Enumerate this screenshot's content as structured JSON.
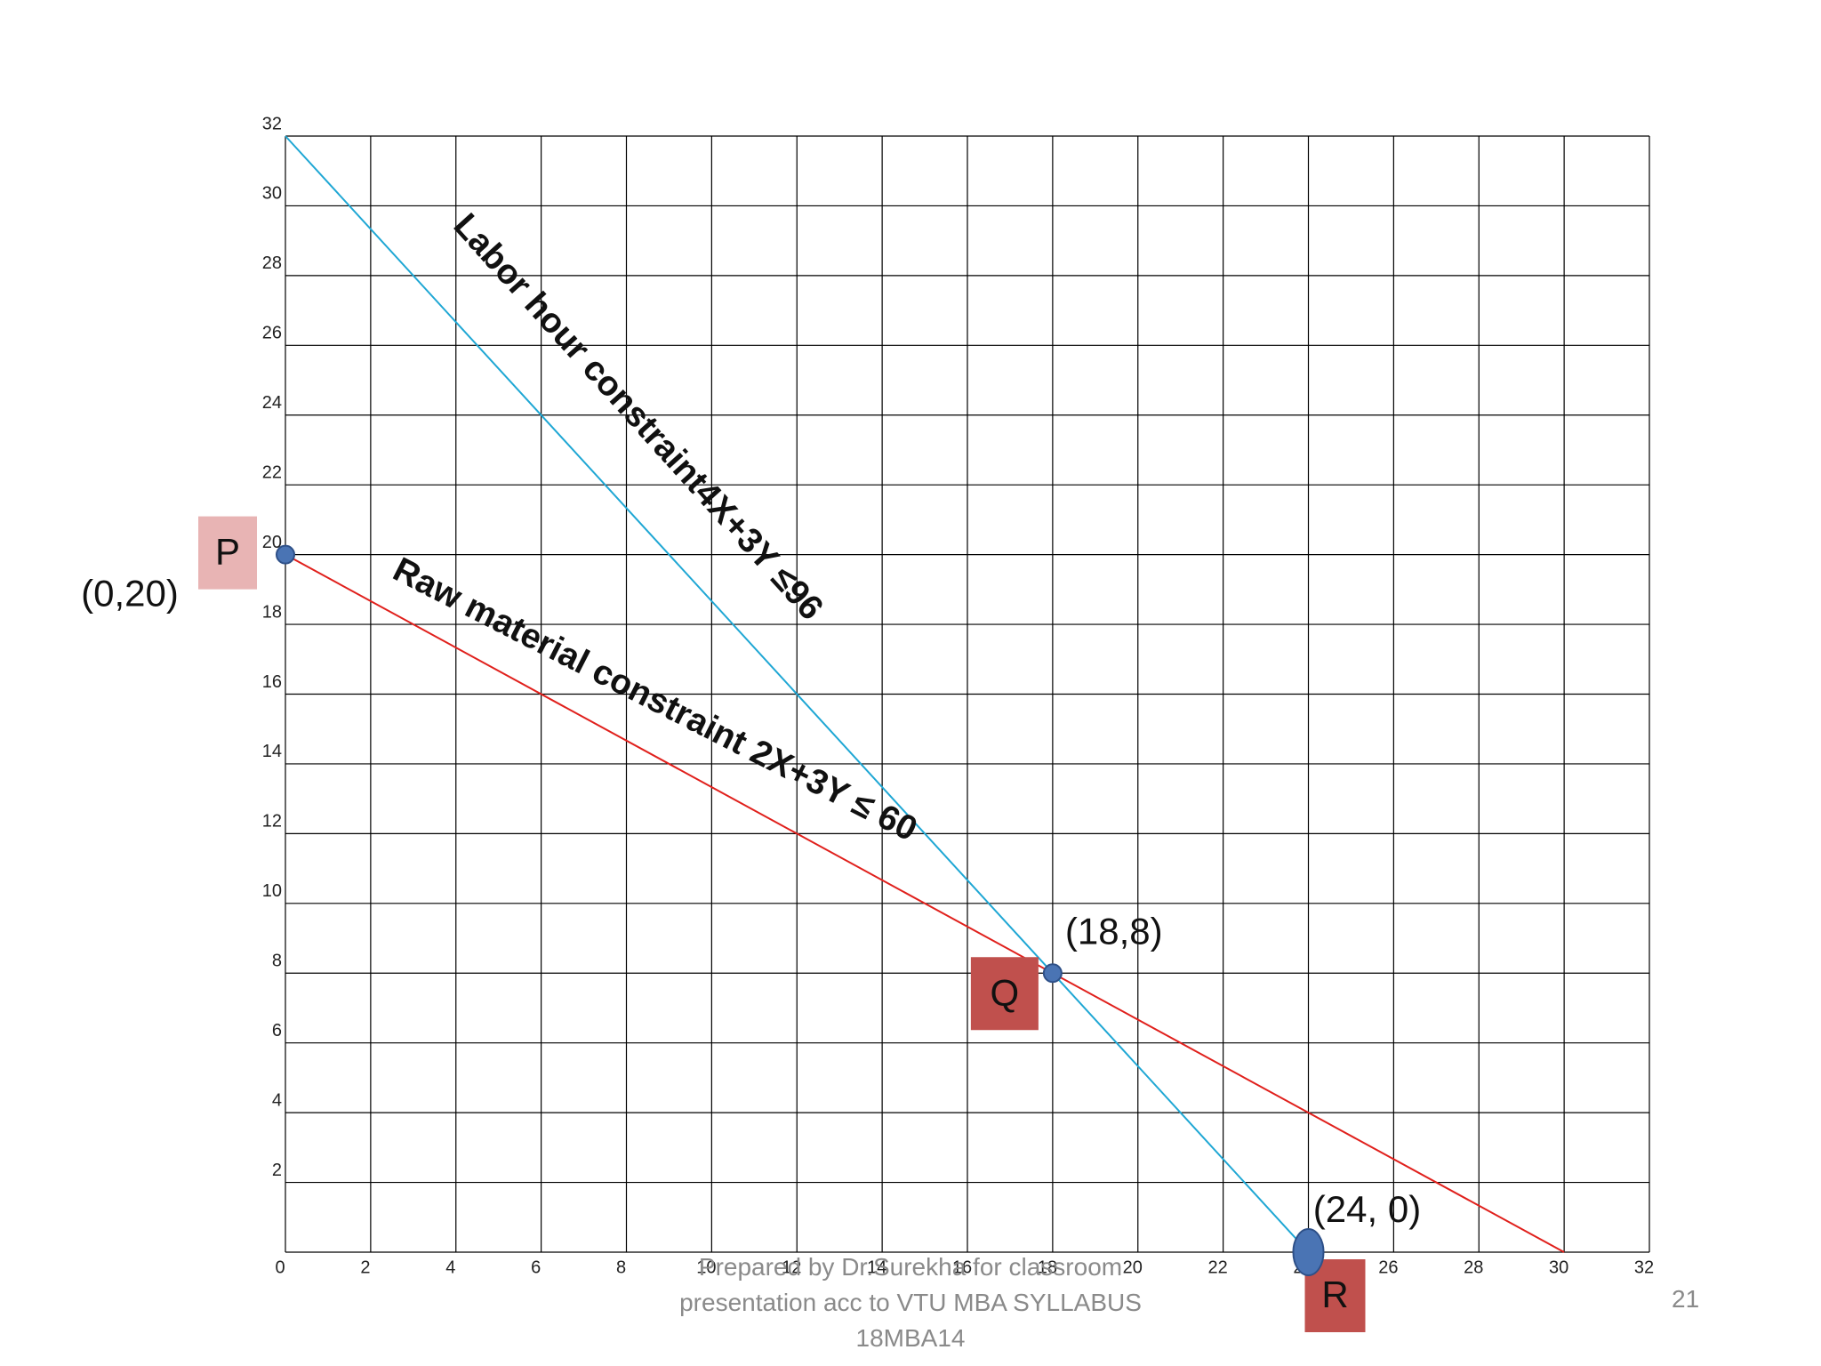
{
  "chart_data": {
    "type": "line",
    "xlim": [
      0,
      32
    ],
    "ylim": [
      0,
      32
    ],
    "xticks": [
      0,
      2,
      4,
      6,
      8,
      10,
      12,
      14,
      16,
      18,
      20,
      22,
      24,
      26,
      28,
      30,
      32
    ],
    "yticks": [
      2,
      4,
      6,
      8,
      10,
      12,
      14,
      16,
      18,
      20,
      22,
      24,
      26,
      28,
      30,
      32
    ],
    "grid": true,
    "series": [
      {
        "label": "Labor hour constraint4X+3Y ≤96",
        "color": "#1fa7d4",
        "x": [
          0,
          24
        ],
        "values": [
          32,
          0
        ]
      },
      {
        "label": "Raw material  constraint 2X+3Y ≤ 60",
        "color": "#e0201c",
        "x": [
          0,
          30
        ],
        "values": [
          20,
          0
        ]
      }
    ],
    "points": [
      {
        "name": "P",
        "label": "(0,20)",
        "x": 0,
        "y": 20
      },
      {
        "name": "Q",
        "label": "(18,8)",
        "x": 18,
        "y": 8
      },
      {
        "name": "R",
        "label": "(24, 0)",
        "x": 24,
        "y": 0
      }
    ],
    "footer": "Prepared by Dr.Surekha for classroom presentation acc to VTU MBA SYLLABUS 18MBA14",
    "page_number": "21"
  }
}
